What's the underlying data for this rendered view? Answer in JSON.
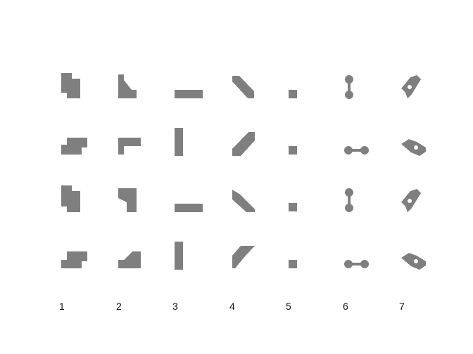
{
  "figure": {
    "shape_color": "#7f7f7f",
    "background_color": "#ffffff",
    "column_labels": [
      "1",
      "2",
      "3",
      "4",
      "5",
      "6",
      "7"
    ],
    "columns": [
      {
        "label": "1",
        "shapes": [
          "notched-block",
          "notched-block",
          "notched-block",
          "notched-block"
        ]
      },
      {
        "label": "2",
        "shapes": [
          "corner-block",
          "corner-block",
          "corner-block",
          "corner-block"
        ]
      },
      {
        "label": "3",
        "shapes": [
          "horizontal-bar",
          "vertical-bar",
          "horizontal-bar",
          "vertical-bar"
        ]
      },
      {
        "label": "4",
        "shapes": [
          "diagonal-wedge",
          "diagonal-wedge",
          "diagonal-wedge",
          "diagonal-wedge"
        ]
      },
      {
        "label": "5",
        "shapes": [
          "small-square",
          "small-square",
          "small-square",
          "small-square"
        ]
      },
      {
        "label": "6",
        "shapes": [
          "dumbbell-vertical",
          "dumbbell-horizontal",
          "dumbbell-vertical",
          "dumbbell-horizontal"
        ]
      },
      {
        "label": "7",
        "shapes": [
          "ring-diamond",
          "ring-diamond",
          "ring-diamond",
          "ring-diamond"
        ]
      }
    ]
  }
}
